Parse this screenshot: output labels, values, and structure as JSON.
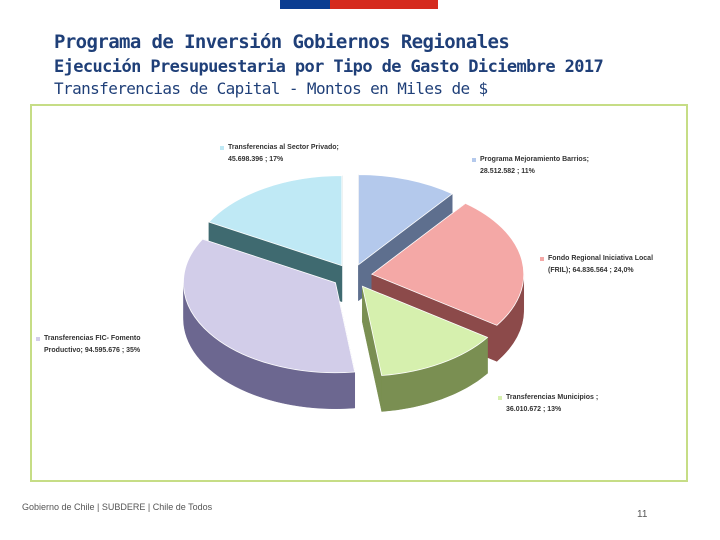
{
  "header": {
    "title": "Programa de Inversión Gobiernos Regionales",
    "subtitle": "Ejecución Presupuestaria por Tipo de Gasto Diciembre 2017",
    "subtitle2": "Transferencias de Capital - Montos en Miles de $"
  },
  "colors": {
    "flag_blue": "#0b3d91",
    "flag_red": "#d52b1e",
    "title": "#1f3f78",
    "frame_border": "#c6dd86"
  },
  "chart_data": {
    "type": "pie",
    "title": "",
    "units": "Miles de $",
    "slices": [
      {
        "label": "Programa Mejoramiento Barrios",
        "value": 28512582,
        "display_value": "28.512.582",
        "percent": "11%",
        "color": "#b4c9ec",
        "dark": "#5e6f8e",
        "label_lines": [
          "Programa Mejoramiento Barrios;",
          "28.512.582 ; 11%"
        ]
      },
      {
        "label": "Fondo Regional Iniciativa Local (FRIL)",
        "value": 64836564,
        "display_value": "64.836.564",
        "percent": "24,0%",
        "color": "#f4a8a6",
        "dark": "#8c4a4a",
        "label_lines": [
          "Fondo Regional Iniciativa Local",
          "(FRIL); 64.836.564 ; 24,0%"
        ]
      },
      {
        "label": "Transferencias Municipios",
        "value": 36010672,
        "display_value": "36.010.672",
        "percent": "13%",
        "color": "#d6f0ae",
        "dark": "#7a8f52",
        "label_lines": [
          "Transferencias Municipios ;",
          "36.010.672 ; 13%"
        ]
      },
      {
        "label": "Transferencias FIC- Fomento Productivo",
        "value": 94595676,
        "display_value": "94.595.676",
        "percent": "35%",
        "color": "#d2cde9",
        "dark": "#6c6790",
        "label_lines": [
          "Transferencias FIC- Fomento",
          "Productivo; 94.595.676 ; 35%"
        ]
      },
      {
        "label": "Transferencias al Sector Privado",
        "value": 45698396,
        "display_value": "45.698.396",
        "percent": "17%",
        "color": "#bfe9f5",
        "dark": "#3f6a70",
        "label_lines": [
          "Transferencias al Sector Privado;",
          "45.698.396 ; 17%"
        ]
      }
    ],
    "legend": "none",
    "data_labels": "outside"
  },
  "footer": {
    "text": "Gobierno de Chile | SUBDERE | Chile de Todos",
    "page": "11"
  }
}
